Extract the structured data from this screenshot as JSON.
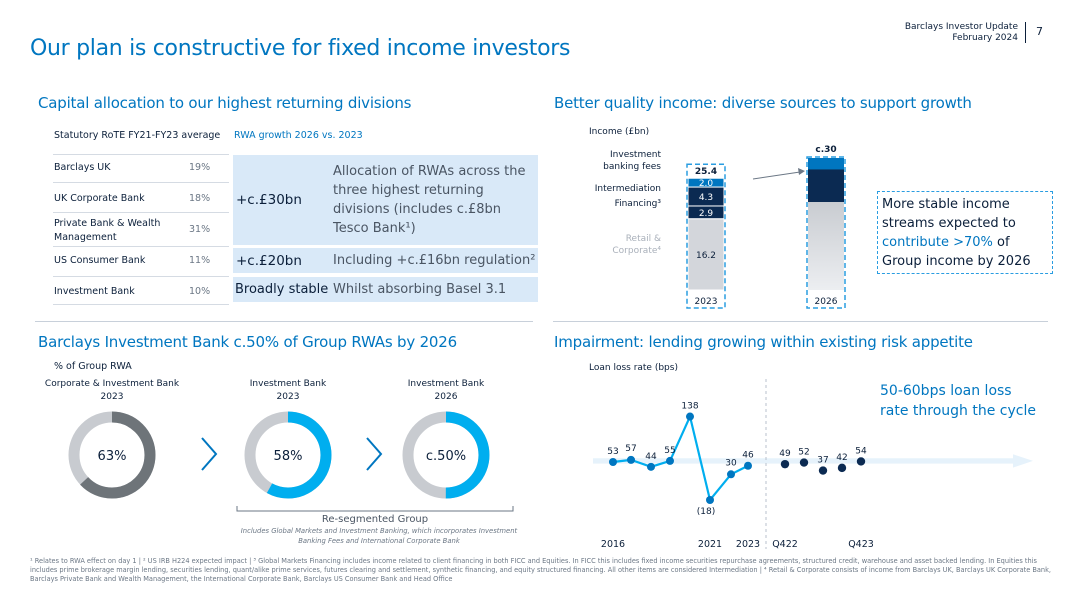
{
  "header": {
    "org_line": "Barclays Investor Update",
    "date_line": "February 2024",
    "page_number": "7",
    "title": "Our plan is constructive for fixed income investors"
  },
  "capital": {
    "title": "Capital allocation to our highest returning divisions",
    "col1_header": "Statutory RoTE FY21-FY23 average",
    "col2_header": "RWA growth 2026 vs. 2023",
    "rows": [
      {
        "name": "Barclays UK",
        "value": "19%"
      },
      {
        "name": "UK Corporate Bank",
        "value": "18%"
      },
      {
        "name": "Private Bank & Wealth Management",
        "value": "31%"
      },
      {
        "name": "US Consumer Bank",
        "value": "11%"
      },
      {
        "name": "Investment Bank",
        "value": "10%"
      }
    ],
    "box1_amount": "+c.£30bn",
    "box1_text": "Allocation of RWAs across the three highest returning divisions (includes c.£8bn Tesco Bank¹)",
    "box2_amount": "+c.£20bn",
    "box2_text": "Including +c.£16bn regulation²",
    "box3_amount": "Broadly stable",
    "box3_text": "Whilst absorbing Basel 3.1"
  },
  "income": {
    "title": "Better quality income: diverse sources to support growth",
    "callout_plain": "More stable income streams expected to",
    "callout_highlight": "contribute >70%",
    "callout_tail": "of Group income by 2026"
  },
  "ib": {
    "title": "Barclays Investment Bank c.50% of Group RWAs by 2026",
    "axis_label": "% of Group RWA",
    "donuts": [
      {
        "title1": "Corporate & Investment Bank",
        "title2": "2023",
        "label": "63%",
        "value": 63
      },
      {
        "title1": "Investment Bank",
        "title2": "2023",
        "label": "58%",
        "value": 58
      },
      {
        "title1": "Investment Bank",
        "title2": "2026",
        "label": "c.50%",
        "value": 50
      }
    ],
    "resegmented": "Re-segmented Group",
    "note1": "Includes Global Markets and Investment Banking, which incorporates Investment",
    "note2": "Banking Fees and International Corporate Bank"
  },
  "impairment": {
    "title": "Impairment: lending growing within existing risk appetite",
    "callout_line1": "50-60bps loan loss",
    "callout_line2": "rate through the cycle"
  },
  "chart_data": [
    {
      "type": "bar",
      "stacked": true,
      "ylabel": "Income (£bn)",
      "categories": [
        "2023",
        "2026"
      ],
      "totals": [
        "25.4",
        "c.30"
      ],
      "series": [
        {
          "name": "Retail & Corporate⁴",
          "values": [
            16.2,
            null
          ],
          "label": "16.2",
          "color": "#d3d6db"
        },
        {
          "name": "Financing³",
          "values": [
            2.9,
            null
          ],
          "label": "2.9",
          "color": "#0b2a52"
        },
        {
          "name": "Intermediation",
          "values": [
            4.3,
            null
          ],
          "label": "4.3",
          "color": "#0b2a52"
        },
        {
          "name": "Investment banking fees",
          "values": [
            2.0,
            null
          ],
          "label": "2.0",
          "color": "#0076c0"
        }
      ],
      "legend_lines": [
        [
          "Investment",
          "banking fees"
        ],
        [
          "Intermediation"
        ],
        [
          "Financing³"
        ],
        [
          "Retail &",
          "Corporate⁴"
        ]
      ]
    },
    {
      "type": "line",
      "ylabel": "Loan loss rate (bps)",
      "series": [
        {
          "name": "Annual",
          "points": [
            {
              "x": "2016",
              "y": 53
            },
            {
              "x": "2017",
              "y": 57
            },
            {
              "x": "2018",
              "y": 44
            },
            {
              "x": "2019",
              "y": 55
            },
            {
              "x": "2020",
              "y": 138
            },
            {
              "x": "2021",
              "y": -18
            },
            {
              "x": "2022",
              "y": 30
            },
            {
              "x": "2023",
              "y": 46
            }
          ]
        },
        {
          "name": "Quarterly",
          "points": [
            {
              "x": "Q422",
              "y": 49
            },
            {
              "x": "Q123",
              "y": 52
            },
            {
              "x": "Q223",
              "y": 37
            },
            {
              "x": "Q323",
              "y": 42
            },
            {
              "x": "Q423",
              "y": 54
            }
          ]
        }
      ],
      "data_labels": [
        "53",
        "57",
        "44",
        "55",
        "138",
        "(18)",
        "30",
        "46",
        "49",
        "52",
        "37",
        "42",
        "54"
      ],
      "x_tick_labels": [
        "2016",
        "2021",
        "2023",
        "Q422",
        "Q423"
      ],
      "band_low": 50,
      "band_high": 60
    }
  ],
  "footnotes": {
    "text": "¹ Relates to RWA effect on day 1 | ² US IRB H224 expected impact | ³ Global Markets Financing includes income related to client financing in both FICC and Equities. In FICC this includes fixed income securities repurchase agreements, structured credit, warehouse and asset backed lending. In Equities this includes prime brokerage margin lending, securities lending, quant/alike prime services, futures clearing and settlement, synthetic financing, and equity structured financing. All other items are considered Intermediation | ⁴ Retail & Corporate consists of income from Barclays UK, Barclays UK Corporate Bank, Barclays Private Bank and Wealth Management, the International Corporate Bank, Barclays US Consumer Bank and Head Office"
  },
  "colors": {
    "brand_blue": "#0076c0",
    "light_blue": "#00aeef",
    "navy": "#0b2a52",
    "box_fill": "#d9e9f8"
  }
}
